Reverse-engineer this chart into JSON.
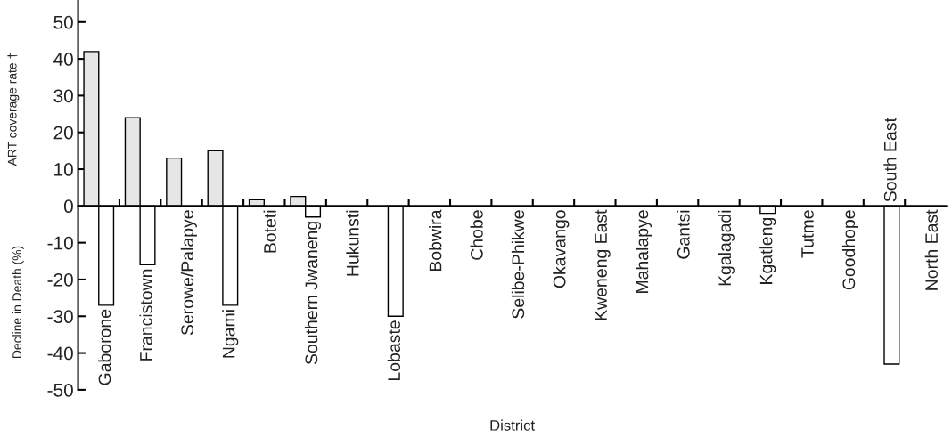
{
  "chart_data": {
    "type": "bar",
    "xlabel": "District",
    "ylabel": "ART coverage rate †",
    "annotations": [
      "Decline in Death (%)"
    ],
    "categories": [
      "Gaborone",
      "Francistown",
      "Serowe/Palapye",
      "Ngami",
      "Boteti",
      "Southern Jwaneng",
      "Hukunsti",
      "Lobaste",
      "Bobwira",
      "Chobe",
      "Selibe-Phikwe",
      "Okavango",
      "Kweneng East",
      "Mahalapye",
      "Gantsi",
      "Kgalagadi",
      "Kgatleng",
      "Tutme",
      "Goodhope",
      "South East",
      "North East"
    ],
    "series": [
      {
        "color": "#e6e6e6",
        "values": [
          42,
          24,
          13,
          15,
          1.7,
          2.6,
          null,
          null,
          null,
          null,
          null,
          null,
          null,
          null,
          null,
          null,
          null,
          null,
          null,
          null,
          null
        ]
      },
      {
        "color": "#ffffff",
        "values": [
          -27,
          -16,
          null,
          -27,
          null,
          -3,
          null,
          -30,
          null,
          null,
          null,
          null,
          null,
          null,
          null,
          null,
          -2,
          null,
          null,
          -43,
          null
        ]
      }
    ],
    "ylim": [
      -50,
      56
    ],
    "yticks": [
      -50,
      -40,
      -30,
      -20,
      -10,
      0,
      10,
      20,
      30,
      40,
      50
    ],
    "grid": false,
    "legend": false
  }
}
